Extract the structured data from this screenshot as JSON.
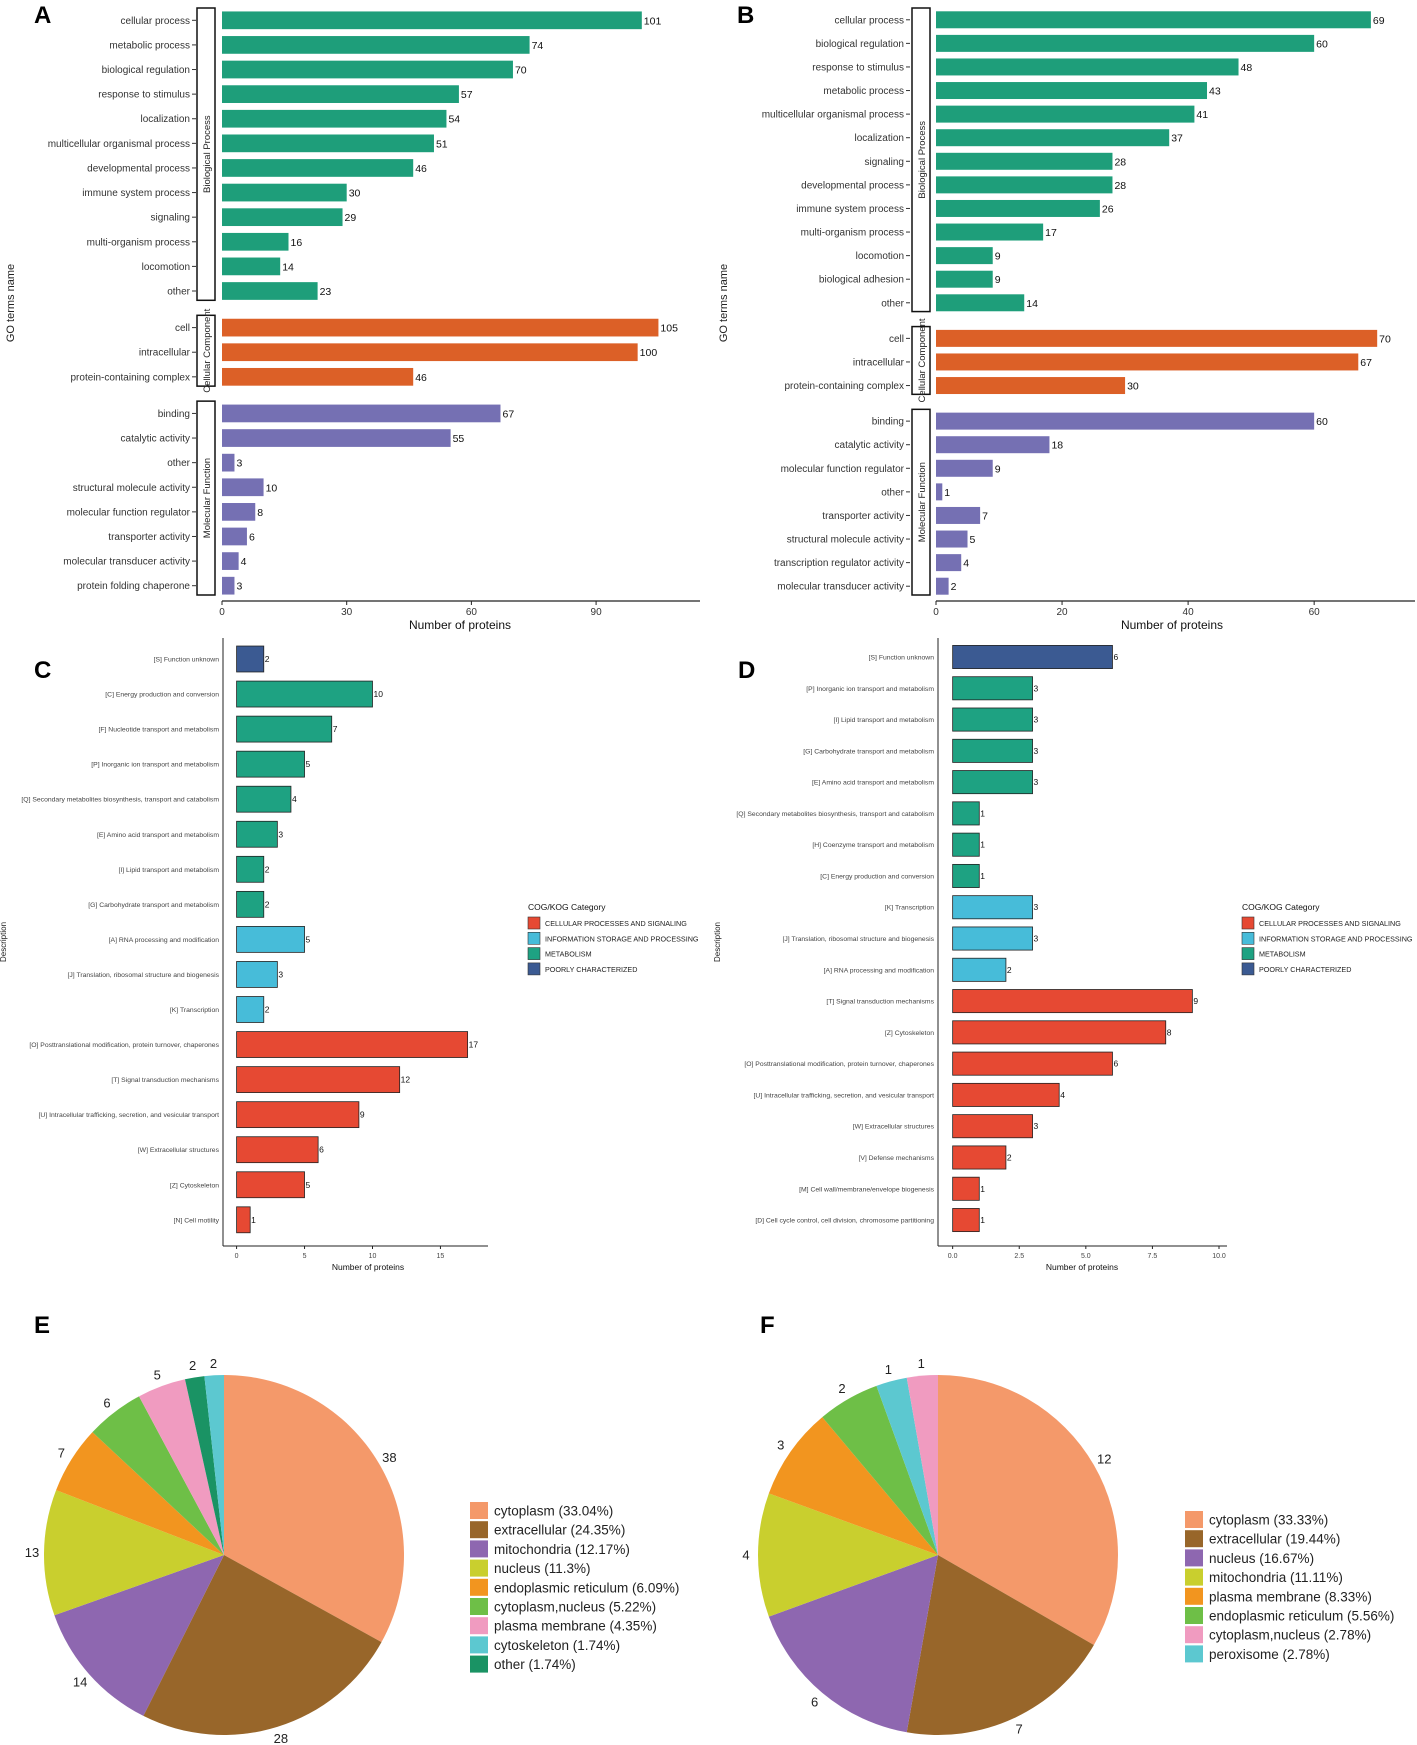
{
  "figure": {
    "colors": {
      "bp": "#1e9e7a",
      "cc": "#dc6027",
      "mf": "#7570b3",
      "cellular": "#e64933",
      "information": "#47bcd9",
      "metabolism": "#1ea282",
      "poorly": "#3b5a92",
      "axis": "#333333",
      "tick": "#444444",
      "bar_stroke": "#222222"
    }
  },
  "chart_data": [
    {
      "panel": "A",
      "type": "bar",
      "orientation": "horizontal",
      "xlabel": "Number of proteins",
      "ylabel": "GO terms name",
      "xlim": [
        0,
        115
      ],
      "xticks": [
        0,
        30,
        60,
        90
      ],
      "groups": [
        {
          "name": "Biological Process",
          "color_key": "bp",
          "categories": [
            "cellular process",
            "metabolic process",
            "biological regulation",
            "response to stimulus",
            "localization",
            "multicellular organismal process",
            "developmental process",
            "immune system process",
            "signaling",
            "multi-organism process",
            "locomotion",
            "other"
          ],
          "values": [
            101,
            74,
            70,
            57,
            54,
            51,
            46,
            30,
            29,
            16,
            14,
            23
          ]
        },
        {
          "name": "Cellular Component",
          "color_key": "cc",
          "categories": [
            "cell",
            "intracellular",
            "protein-containing complex"
          ],
          "values": [
            105,
            100,
            46
          ]
        },
        {
          "name": "Molecular Function",
          "color_key": "mf",
          "categories": [
            "binding",
            "catalytic activity",
            "other",
            "structural molecule activity",
            "molecular function regulator",
            "transporter activity",
            "molecular transducer activity",
            "protein folding chaperone"
          ],
          "values": [
            67,
            55,
            3,
            10,
            8,
            6,
            4,
            3
          ]
        }
      ]
    },
    {
      "panel": "B",
      "type": "bar",
      "orientation": "horizontal",
      "xlabel": "Number of proteins",
      "ylabel": "GO terms name",
      "xlim": [
        0,
        76
      ],
      "xticks": [
        0,
        20,
        40,
        60
      ],
      "groups": [
        {
          "name": "Biological Process",
          "color_key": "bp",
          "categories": [
            "cellular process",
            "biological regulation",
            "response to stimulus",
            "metabolic process",
            "multicellular organismal process",
            "localization",
            "signaling",
            "developmental process",
            "immune system process",
            "multi-organism process",
            "locomotion",
            "biological adhesion",
            "other"
          ],
          "values": [
            69,
            60,
            48,
            43,
            41,
            37,
            28,
            28,
            26,
            17,
            9,
            9,
            14
          ]
        },
        {
          "name": "Cellular Component",
          "color_key": "cc",
          "categories": [
            "cell",
            "intracellular",
            "protein-containing complex"
          ],
          "values": [
            70,
            67,
            30
          ]
        },
        {
          "name": "Molecular Function",
          "color_key": "mf",
          "categories": [
            "binding",
            "catalytic activity",
            "molecular function regulator",
            "other",
            "transporter activity",
            "structural molecule activity",
            "transcription regulator activity",
            "molecular transducer activity"
          ],
          "values": [
            60,
            18,
            9,
            1,
            7,
            5,
            4,
            2
          ]
        }
      ]
    },
    {
      "panel": "C",
      "type": "bar",
      "orientation": "horizontal",
      "xlabel": "Number of proteins",
      "ylabel": "Description",
      "xlim": [
        -1,
        18.5
      ],
      "xticks": [
        0,
        5,
        10,
        15
      ],
      "xtick_labels": [
        "0",
        "5",
        "10",
        "15"
      ],
      "legend_title": "COG/KOG Category",
      "legend": [
        {
          "label": "CELLULAR PROCESSES AND SIGNALING",
          "color_key": "cellular"
        },
        {
          "label": "INFORMATION STORAGE AND PROCESSING",
          "color_key": "information"
        },
        {
          "label": "METABOLISM",
          "color_key": "metabolism"
        },
        {
          "label": "POORLY CHARACTERIZED",
          "color_key": "poorly"
        }
      ],
      "categories": [
        "[S] Function unknown",
        "[C] Energy production and conversion",
        "[F] Nucleotide transport and metabolism",
        "[P] Inorganic ion transport and metabolism",
        "[Q] Secondary metabolites biosynthesis, transport and catabolism",
        "[E] Amino acid transport and metabolism",
        "[I] Lipid transport and metabolism",
        "[G] Carbohydrate transport and metabolism",
        "[A] RNA processing and modification",
        "[J] Translation, ribosomal structure and biogenesis",
        "[K] Transcription",
        "[O] Posttranslational modification, protein turnover, chaperones",
        "[T] Signal transduction mechanisms",
        "[U] Intracellular trafficking, secretion, and vesicular transport",
        "[W] Extracellular structures",
        "[Z] Cytoskeleton",
        "[N] Cell motility"
      ],
      "values": [
        2,
        10,
        7,
        5,
        4,
        3,
        2,
        2,
        5,
        3,
        2,
        17,
        12,
        9,
        6,
        5,
        1
      ],
      "bar_categories": [
        "poorly",
        "metabolism",
        "metabolism",
        "metabolism",
        "metabolism",
        "metabolism",
        "metabolism",
        "metabolism",
        "information",
        "information",
        "information",
        "cellular",
        "cellular",
        "cellular",
        "cellular",
        "cellular",
        "cellular"
      ]
    },
    {
      "panel": "D",
      "type": "bar",
      "orientation": "horizontal",
      "xlabel": "Number of proteins",
      "ylabel": "Description",
      "xlim": [
        -0.55,
        10.3
      ],
      "xticks": [
        0,
        2.5,
        5,
        7.5,
        10
      ],
      "xtick_labels": [
        "0.0",
        "2.5",
        "5.0",
        "7.5",
        "10.0"
      ],
      "legend_title": "COG/KOG Category",
      "legend": [
        {
          "label": "CELLULAR PROCESSES AND SIGNALING",
          "color_key": "cellular"
        },
        {
          "label": "INFORMATION STORAGE AND PROCESSING",
          "color_key": "information"
        },
        {
          "label": "METABOLISM",
          "color_key": "metabolism"
        },
        {
          "label": "POORLY CHARACTERIZED",
          "color_key": "poorly"
        }
      ],
      "categories": [
        "[S] Function unknown",
        "[P] Inorganic ion transport and metabolism",
        "[I] Lipid transport and metabolism",
        "[G] Carbohydrate transport and metabolism",
        "[E] Amino acid transport and metabolism",
        "[Q] Secondary metabolites biosynthesis, transport and catabolism",
        "[H] Coenzyme transport and metabolism",
        "[C] Energy production and conversion",
        "[K] Transcription",
        "[J] Translation, ribosomal structure and biogenesis",
        "[A] RNA processing and modification",
        "[T] Signal transduction mechanisms",
        "[Z] Cytoskeleton",
        "[O] Posttranslational modification, protein turnover, chaperones",
        "[U] Intracellular trafficking, secretion, and vesicular transport",
        "[W] Extracellular structures",
        "[V] Defense mechanisms",
        "[M] Cell wall/membrane/envelope biogenesis",
        "[D] Cell cycle control, cell division, chromosome partitioning"
      ],
      "values": [
        6,
        3,
        3,
        3,
        3,
        1,
        1,
        1,
        3,
        3,
        2,
        9,
        8,
        6,
        4,
        3,
        2,
        1,
        1
      ],
      "bar_categories": [
        "poorly",
        "metabolism",
        "metabolism",
        "metabolism",
        "metabolism",
        "metabolism",
        "metabolism",
        "metabolism",
        "information",
        "information",
        "information",
        "cellular",
        "cellular",
        "cellular",
        "cellular",
        "cellular",
        "cellular",
        "cellular",
        "cellular"
      ]
    },
    {
      "panel": "E",
      "type": "pie",
      "slices": [
        {
          "label": "cytoplasm (33.04%)",
          "value": 38,
          "color": "#f4996a"
        },
        {
          "label": "extracellular (24.35%)",
          "value": 28,
          "color": "#98662a"
        },
        {
          "label": "mitochondria (12.17%)",
          "value": 14,
          "color": "#8e67b0"
        },
        {
          "label": "nucleus (11.3%)",
          "value": 13,
          "color": "#c9cf2e"
        },
        {
          "label": "endoplasmic reticulum (6.09%)",
          "value": 7,
          "color": "#f2951f"
        },
        {
          "label": "cytoplasm,nucleus (5.22%)",
          "value": 6,
          "color": "#6ebf47"
        },
        {
          "label": "plasma membrane (4.35%)",
          "value": 5,
          "color": "#f09bc0"
        },
        {
          "label": "cytoskeleton (1.74%)",
          "value": 2,
          "color": "#5cc8d0"
        },
        {
          "label": "other (1.74%)",
          "value": 2,
          "color": "#1a9364"
        }
      ],
      "order": [
        0,
        1,
        2,
        3,
        4,
        5,
        6,
        8,
        7
      ]
    },
    {
      "panel": "F",
      "type": "pie",
      "slices": [
        {
          "label": "cytoplasm (33.33%)",
          "value": 12,
          "color": "#f4996a"
        },
        {
          "label": "extracellular (19.44%)",
          "value": 7,
          "color": "#98662a"
        },
        {
          "label": "nucleus (16.67%)",
          "value": 6,
          "color": "#8e67b0"
        },
        {
          "label": "mitochondria (11.11%)",
          "value": 4,
          "color": "#c9cf2e"
        },
        {
          "label": "plasma membrane (8.33%)",
          "value": 3,
          "color": "#f2951f"
        },
        {
          "label": "endoplasmic reticulum (5.56%)",
          "value": 2,
          "color": "#6ebf47"
        },
        {
          "label": "cytoplasm,nucleus (2.78%)",
          "value": 1,
          "color": "#f09bc0"
        },
        {
          "label": "peroxisome (2.78%)",
          "value": 1,
          "color": "#5cc8d0"
        }
      ],
      "order": [
        0,
        1,
        2,
        3,
        4,
        5,
        7,
        6
      ]
    }
  ]
}
